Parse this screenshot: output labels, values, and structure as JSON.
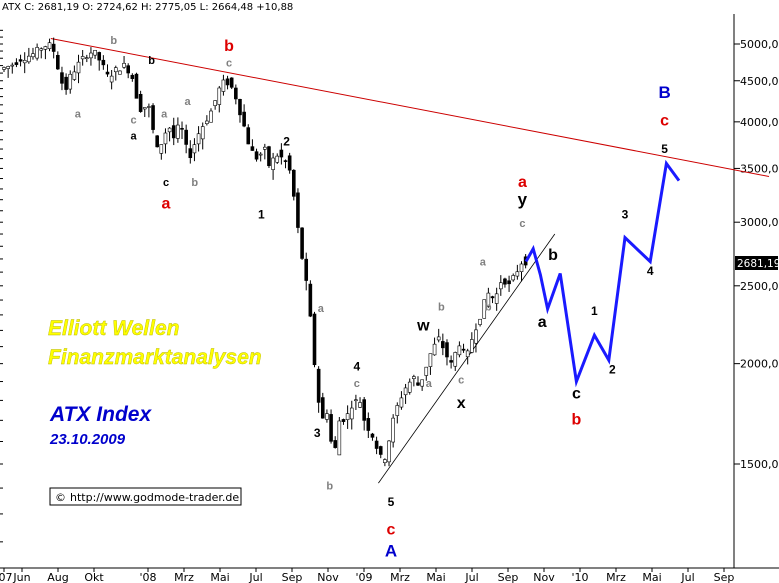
{
  "header": {
    "text": "ATX C: 2681,19 O: 2724,62 H: 2775,05 L: 2664,48 +10,88"
  },
  "titles": {
    "line1": "Elliott Wellen",
    "line2": "Finanzmarktanalysen",
    "index_name": "ATX Index",
    "date": "23.10.2009"
  },
  "copyright": {
    "symbol": "©",
    "url": "http://www.godmode-trader.de"
  },
  "last_price_label": "2681,19",
  "colors": {
    "forecast": "#1a1aff",
    "trendline": "#cc0000",
    "wave_red": "#dd0000",
    "wave_blue": "#0000cc",
    "wave_gray": "#808080",
    "wave_black": "#000000"
  },
  "chart_data": {
    "type": "candlestick",
    "symbol": "ATX",
    "scale": "log",
    "ylim": [
      1150,
      5400
    ],
    "y_ticks": [
      "5000,00",
      "4500,00",
      "4000,00",
      "3500,00",
      "3000,00",
      "2500,00",
      "2000,00",
      "1500,00"
    ],
    "y_tick_values": [
      5000,
      4500,
      4000,
      3500,
      3000,
      2500,
      2000,
      1500
    ],
    "x_ticks": [
      "'07",
      "Jun",
      "Aug",
      "Okt",
      "'08",
      "Mrz",
      "Mai",
      "Jul",
      "Sep",
      "Nov",
      "'09",
      "Mrz",
      "Mai",
      "Jul",
      "Sep",
      "Nov",
      "'10",
      "Mrz",
      "Mai",
      "Jul",
      "Sep"
    ],
    "x_tick_months": [
      0,
      1,
      3,
      5,
      8,
      10,
      12,
      14,
      16,
      18,
      20,
      22,
      24,
      26,
      28,
      30,
      32,
      34,
      36,
      38,
      40
    ],
    "price_path": [
      [
        0.0,
        4650
      ],
      [
        0.6,
        4700
      ],
      [
        1.2,
        4800
      ],
      [
        1.8,
        4850
      ],
      [
        2.3,
        4950
      ],
      [
        2.7,
        5000
      ],
      [
        3.0,
        4900
      ],
      [
        3.3,
        4600
      ],
      [
        3.6,
        4350
      ],
      [
        3.9,
        4550
      ],
      [
        4.3,
        4700
      ],
      [
        4.8,
        4850
      ],
      [
        5.2,
        4900
      ],
      [
        5.6,
        4750
      ],
      [
        6.0,
        4550
      ],
      [
        6.5,
        4650
      ],
      [
        6.9,
        4700
      ],
      [
        7.3,
        4600
      ],
      [
        7.6,
        4300
      ],
      [
        7.9,
        4100
      ],
      [
        8.2,
        4250
      ],
      [
        8.6,
        3800
      ],
      [
        8.8,
        3650
      ],
      [
        9.1,
        3850
      ],
      [
        9.4,
        3950
      ],
      [
        9.7,
        3800
      ],
      [
        10.0,
        4000
      ],
      [
        10.3,
        3750
      ],
      [
        10.5,
        3600
      ],
      [
        10.8,
        3750
      ],
      [
        11.1,
        3900
      ],
      [
        11.4,
        4000
      ],
      [
        11.8,
        4150
      ],
      [
        12.2,
        4400
      ],
      [
        12.5,
        4500
      ],
      [
        12.8,
        4450
      ],
      [
        13.1,
        4300
      ],
      [
        13.5,
        4000
      ],
      [
        13.9,
        3700
      ],
      [
        14.3,
        3600
      ],
      [
        14.7,
        3700
      ],
      [
        15.0,
        3500
      ],
      [
        15.3,
        3650
      ],
      [
        15.7,
        3600
      ],
      [
        16.0,
        3550
      ],
      [
        16.2,
        3400
      ],
      [
        16.5,
        3000
      ],
      [
        16.8,
        2700
      ],
      [
        17.1,
        2450
      ],
      [
        17.4,
        2100
      ],
      [
        17.6,
        1850
      ],
      [
        17.9,
        1700
      ],
      [
        18.2,
        1750
      ],
      [
        18.4,
        1600
      ],
      [
        18.6,
        1550
      ],
      [
        18.9,
        1720
      ],
      [
        19.2,
        1700
      ],
      [
        19.6,
        1790
      ],
      [
        20.0,
        1800
      ],
      [
        20.3,
        1680
      ],
      [
        20.6,
        1650
      ],
      [
        21.0,
        1560
      ],
      [
        21.3,
        1500
      ],
      [
        21.6,
        1600
      ],
      [
        21.9,
        1720
      ],
      [
        22.2,
        1800
      ],
      [
        22.6,
        1880
      ],
      [
        23.0,
        1920
      ],
      [
        23.3,
        1870
      ],
      [
        23.7,
        1990
      ],
      [
        24.0,
        2080
      ],
      [
        24.4,
        2150
      ],
      [
        24.8,
        2050
      ],
      [
        25.1,
        1990
      ],
      [
        25.5,
        2130
      ],
      [
        25.9,
        2020
      ],
      [
        26.3,
        2180
      ],
      [
        26.7,
        2300
      ],
      [
        27.1,
        2450
      ],
      [
        27.5,
        2400
      ],
      [
        27.9,
        2560
      ],
      [
        28.3,
        2500
      ],
      [
        28.7,
        2600
      ],
      [
        29.0,
        2680
      ]
    ],
    "forecast_path": [
      [
        29.0,
        2680
      ],
      [
        29.4,
        2780
      ],
      [
        29.8,
        2580
      ],
      [
        30.2,
        2340
      ],
      [
        30.9,
        2590
      ],
      [
        31.8,
        1900
      ],
      [
        32.8,
        2170
      ],
      [
        33.6,
        2020
      ],
      [
        34.5,
        2870
      ],
      [
        35.9,
        2680
      ],
      [
        36.8,
        3550
      ],
      [
        37.5,
        3380
      ]
    ],
    "trendline": [
      [
        2.6,
        5080
      ],
      [
        42.5,
        3420
      ]
    ],
    "channel_line": [
      [
        20.8,
        1420
      ],
      [
        30.6,
        2900
      ]
    ],
    "wave_labels": [
      {
        "text": "b",
        "t": 6.1,
        "p": 5000,
        "color": "gray",
        "size": 11
      },
      {
        "text": "a",
        "t": 4.1,
        "p": 4050,
        "color": "gray",
        "size": 11
      },
      {
        "text": "b",
        "t": 8.2,
        "p": 4720,
        "color": "black",
        "size": 11
      },
      {
        "text": "c",
        "t": 7.2,
        "p": 3980,
        "color": "gray",
        "size": 11
      },
      {
        "text": "a",
        "t": 7.2,
        "p": 3800,
        "color": "black",
        "size": 11
      },
      {
        "text": "b",
        "t": 12.5,
        "p": 4900,
        "color": "red",
        "size": 16
      },
      {
        "text": "c",
        "t": 12.5,
        "p": 4690,
        "color": "gray",
        "size": 11
      },
      {
        "text": "a",
        "t": 10.2,
        "p": 4200,
        "color": "gray",
        "size": 11
      },
      {
        "text": "a",
        "t": 8.9,
        "p": 4050,
        "color": "gray",
        "size": 11
      },
      {
        "text": "c",
        "t": 9.0,
        "p": 3330,
        "color": "black",
        "size": 11
      },
      {
        "text": "a",
        "t": 9.0,
        "p": 3120,
        "color": "red",
        "size": 16
      },
      {
        "text": "b",
        "t": 10.6,
        "p": 3330,
        "color": "gray",
        "size": 11
      },
      {
        "text": "2",
        "t": 15.7,
        "p": 3740,
        "color": "black",
        "size": 12
      },
      {
        "text": "1",
        "t": 14.3,
        "p": 3030,
        "color": "black",
        "size": 12
      },
      {
        "text": "a",
        "t": 17.6,
        "p": 2320,
        "color": "gray",
        "size": 11
      },
      {
        "text": "4",
        "t": 19.6,
        "p": 1960,
        "color": "black",
        "size": 12
      },
      {
        "text": "c",
        "t": 19.6,
        "p": 1870,
        "color": "gray",
        "size": 11
      },
      {
        "text": "3",
        "t": 17.4,
        "p": 1620,
        "color": "black",
        "size": 12
      },
      {
        "text": "b",
        "t": 18.1,
        "p": 1395,
        "color": "gray",
        "size": 11
      },
      {
        "text": "5",
        "t": 21.5,
        "p": 1330,
        "color": "black",
        "size": 12
      },
      {
        "text": "c",
        "t": 21.5,
        "p": 1225,
        "color": "red",
        "size": 16
      },
      {
        "text": "A",
        "t": 21.5,
        "p": 1150,
        "color": "blue",
        "size": 17
      },
      {
        "text": "w",
        "t": 23.3,
        "p": 2200,
        "color": "black",
        "size": 16
      },
      {
        "text": "b",
        "t": 24.3,
        "p": 2330,
        "color": "gray",
        "size": 11
      },
      {
        "text": "a",
        "t": 23.6,
        "p": 1870,
        "color": "gray",
        "size": 11
      },
      {
        "text": "c",
        "t": 25.4,
        "p": 1890,
        "color": "gray",
        "size": 11
      },
      {
        "text": "x",
        "t": 25.4,
        "p": 1760,
        "color": "black",
        "size": 16
      },
      {
        "text": "b",
        "t": 26.9,
        "p": 2330,
        "color": "gray",
        "size": 11
      },
      {
        "text": "a",
        "t": 26.6,
        "p": 2650,
        "color": "gray",
        "size": 11
      },
      {
        "text": "a",
        "t": 28.8,
        "p": 3320,
        "color": "red",
        "size": 16
      },
      {
        "text": "y",
        "t": 28.8,
        "p": 3150,
        "color": "black",
        "size": 17
      },
      {
        "text": "c",
        "t": 28.8,
        "p": 2960,
        "color": "gray",
        "size": 11
      },
      {
        "text": "b",
        "t": 30.5,
        "p": 2690,
        "color": "black",
        "size": 16
      },
      {
        "text": "a",
        "t": 29.9,
        "p": 2220,
        "color": "black",
        "size": 16
      },
      {
        "text": "c",
        "t": 31.8,
        "p": 1810,
        "color": "black",
        "size": 16
      },
      {
        "text": "b",
        "t": 31.8,
        "p": 1680,
        "color": "red",
        "size": 16
      },
      {
        "text": "1",
        "t": 32.8,
        "p": 2300,
        "color": "black",
        "size": 12
      },
      {
        "text": "2",
        "t": 33.8,
        "p": 1945,
        "color": "black",
        "size": 12
      },
      {
        "text": "3",
        "t": 34.5,
        "p": 3030,
        "color": "black",
        "size": 12
      },
      {
        "text": "4",
        "t": 35.9,
        "p": 2580,
        "color": "black",
        "size": 12
      },
      {
        "text": "B",
        "t": 36.7,
        "p": 4280,
        "color": "blue",
        "size": 17
      },
      {
        "text": "c",
        "t": 36.7,
        "p": 3960,
        "color": "red",
        "size": 16
      },
      {
        "text": "5",
        "t": 36.7,
        "p": 3660,
        "color": "black",
        "size": 12
      }
    ]
  }
}
